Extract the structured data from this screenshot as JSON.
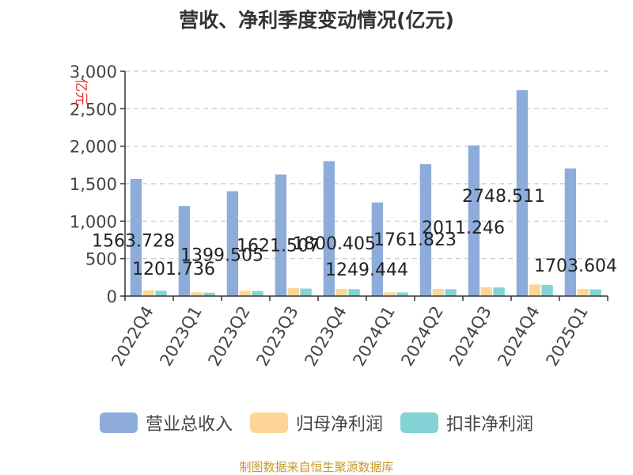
{
  "chart_data": {
    "type": "bar",
    "title": "营收、净利季度变动情况(亿元)",
    "ylabel": "亿元",
    "ylim": [
      0,
      3000
    ],
    "yticks": [
      "0",
      "500",
      "1,000",
      "1,500",
      "2,000",
      "2,500",
      "3,000"
    ],
    "categories": [
      "2022Q4",
      "2023Q1",
      "2023Q2",
      "2023Q3",
      "2023Q4",
      "2024Q1",
      "2024Q2",
      "2024Q3",
      "2024Q4",
      "2025Q1"
    ],
    "series": [
      {
        "name": "营业总收入",
        "color": "#8eacd9",
        "values": [
          1563.728,
          1201.736,
          1399.505,
          1621.507,
          1800.405,
          1249.444,
          1761.823,
          2011.246,
          2748.511,
          1703.604
        ]
      },
      {
        "name": "归母净利润",
        "color": "#fdd697",
        "values": [
          75,
          50,
          70,
          105,
          95,
          50,
          95,
          120,
          155,
          95
        ]
      },
      {
        "name": "扣非净利润",
        "color": "#82d2d6",
        "values": [
          72,
          45,
          68,
          100,
          92,
          48,
          92,
          115,
          148,
          90
        ]
      }
    ],
    "data_labels": [
      "1563.728",
      "1201.736",
      "1399.505",
      "1621.507",
      "1800.405",
      "1249.444",
      "1761.823",
      "2011.246",
      "2748.511",
      "1703.604"
    ],
    "grid": true,
    "legend_position": "bottom"
  },
  "footer": "制图数据来自恒生聚源数据库"
}
